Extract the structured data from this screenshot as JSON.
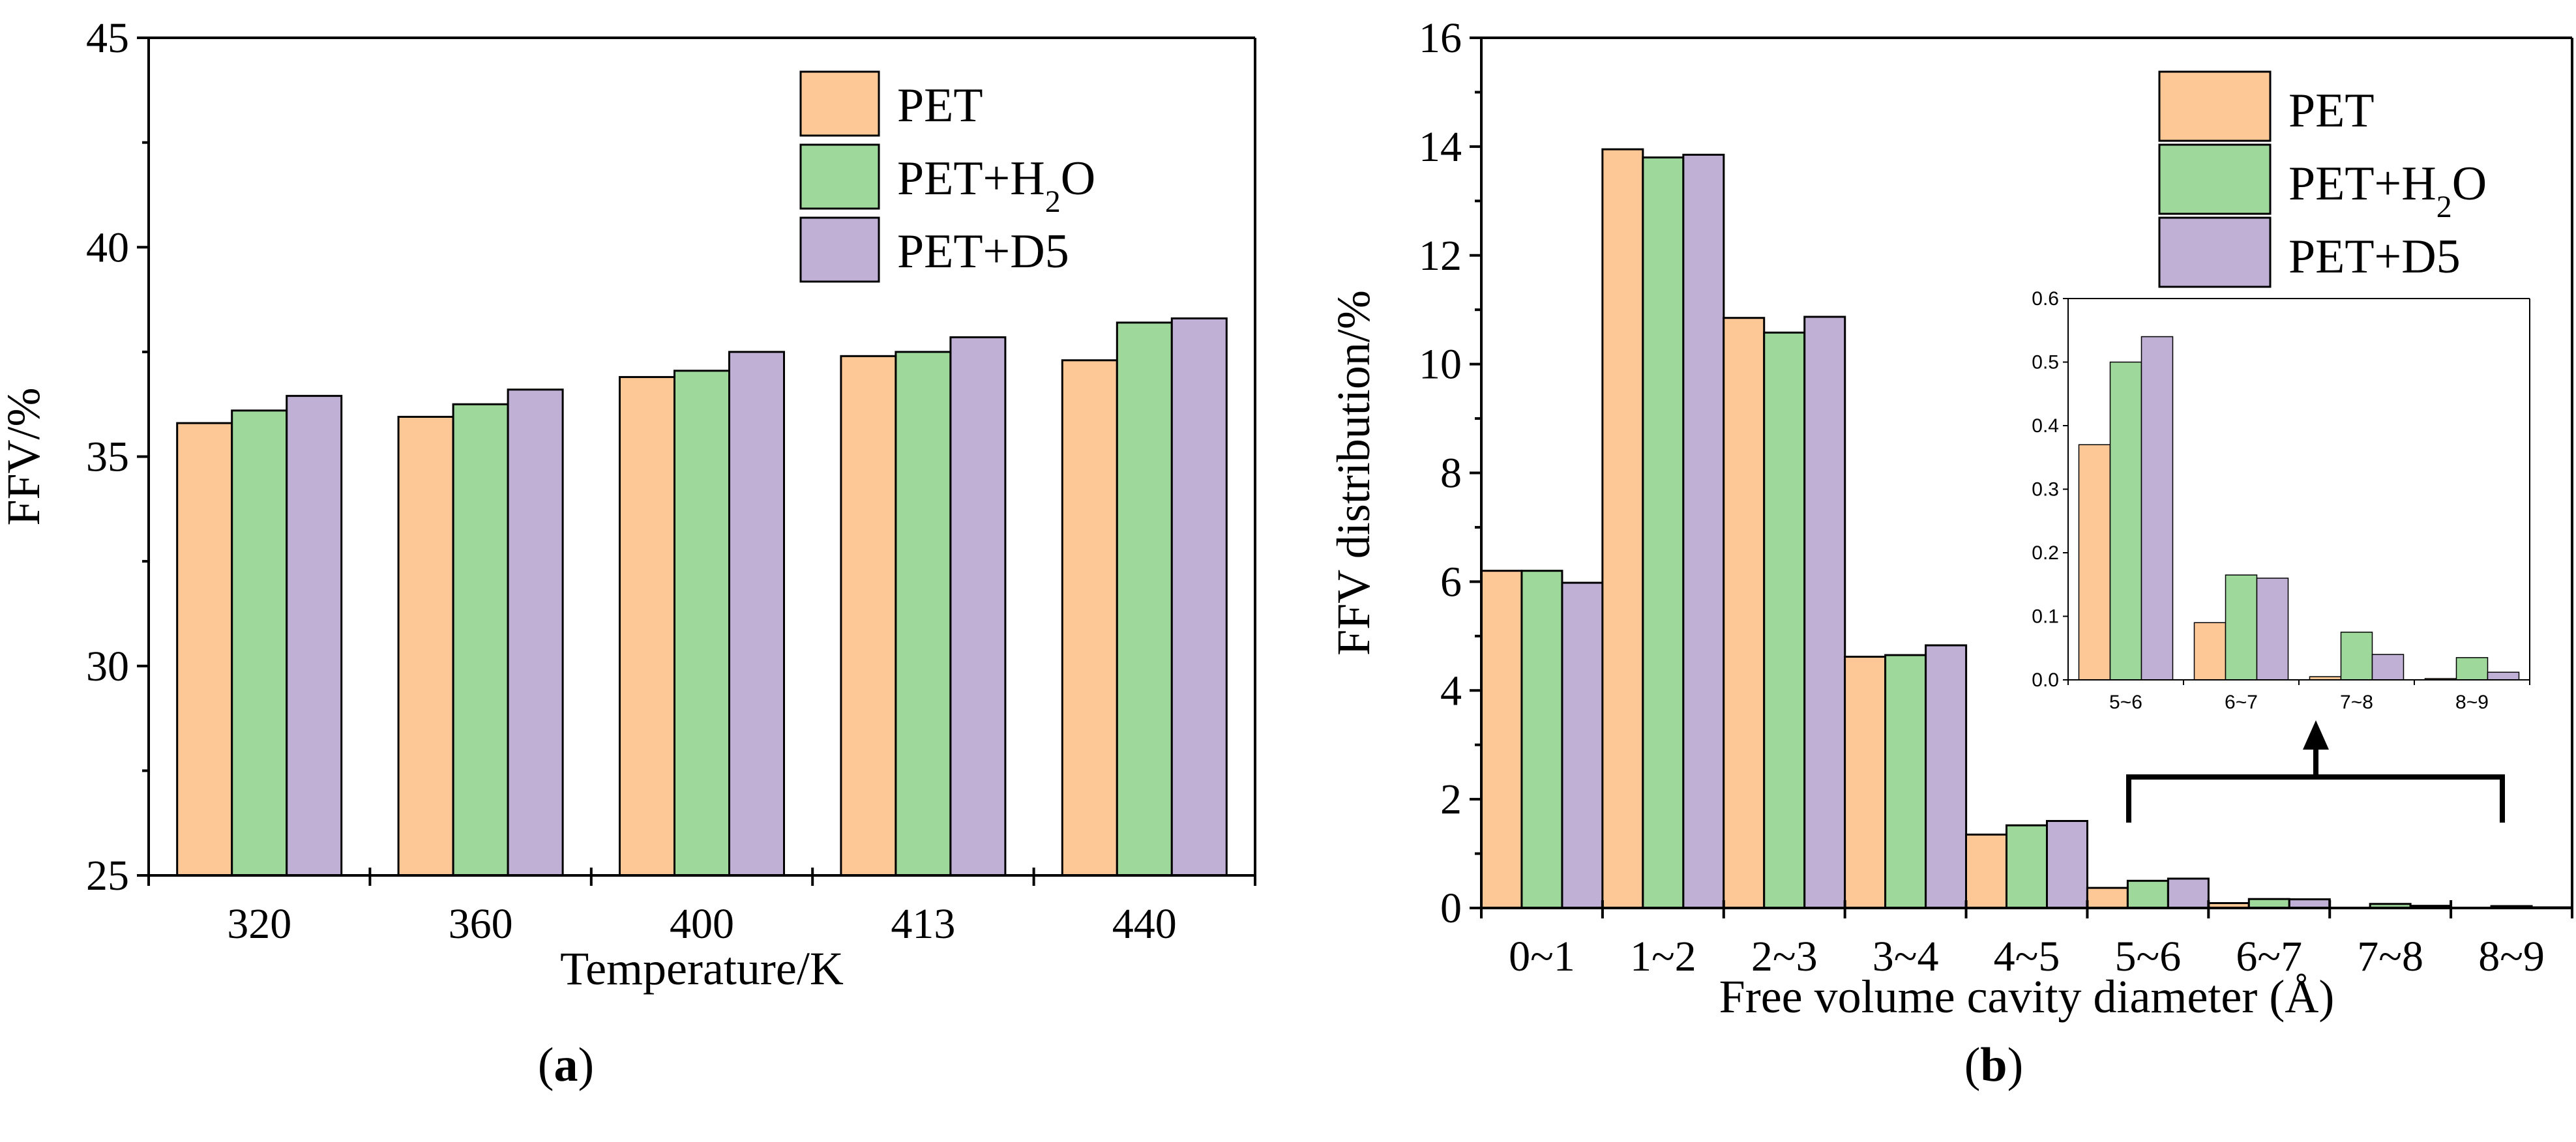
{
  "colors": {
    "PET": "#fdc896",
    "PET+H2O": "#9ed89b",
    "PET+D5": "#c0b0d6",
    "axis": "#000000"
  },
  "legend": {
    "entries": [
      {
        "key": "PET",
        "base": "PET",
        "sub": "",
        "tail": ""
      },
      {
        "key": "PET+H2O",
        "base": "PET+H",
        "sub": "2",
        "tail": "O"
      },
      {
        "key": "PET+D5",
        "base": "PET+D5",
        "sub": "",
        "tail": ""
      }
    ]
  },
  "chart_data": [
    {
      "id": "a",
      "panel_label": "a",
      "type": "bar",
      "title": "",
      "xlabel": "Temperature/K",
      "ylabel": "FFV/%",
      "ylim": [
        25,
        45
      ],
      "yticks": [
        "25",
        "30",
        "35",
        "40",
        "45"
      ],
      "categories": [
        "320",
        "360",
        "400",
        "413",
        "440"
      ],
      "series": [
        {
          "name": "PET",
          "values": [
            35.8,
            35.95,
            36.9,
            37.4,
            37.3
          ]
        },
        {
          "name": "PET+H2O",
          "values": [
            36.1,
            36.25,
            37.05,
            37.5,
            38.2
          ]
        },
        {
          "name": "PET+D5",
          "values": [
            36.45,
            36.6,
            37.5,
            37.85,
            38.3
          ]
        }
      ],
      "legend_position": "top-right"
    },
    {
      "id": "b",
      "panel_label": "b",
      "type": "bar",
      "title": "",
      "xlabel": "Free volume cavity diameter (Å)",
      "ylabel": "FFV distribution/%",
      "ylim": [
        0,
        16
      ],
      "yticks": [
        "0",
        "2",
        "4",
        "6",
        "8",
        "10",
        "12",
        "14",
        "16"
      ],
      "categories": [
        "0~1",
        "1~2",
        "2~3",
        "3~4",
        "4~5",
        "5~6",
        "6~7",
        "7~8",
        "8~9"
      ],
      "series": [
        {
          "name": "PET",
          "values": [
            6.2,
            13.95,
            10.85,
            4.62,
            1.35,
            0.37,
            0.09,
            0.005,
            0.002
          ]
        },
        {
          "name": "PET+H2O",
          "values": [
            6.2,
            13.8,
            10.58,
            4.65,
            1.52,
            0.5,
            0.165,
            0.075,
            0.035
          ]
        },
        {
          "name": "PET+D5",
          "values": [
            5.98,
            13.85,
            10.87,
            4.83,
            1.6,
            0.54,
            0.16,
            0.04,
            0.012
          ]
        }
      ],
      "legend_position": "top-right"
    },
    {
      "id": "b-inset",
      "type": "bar",
      "title": "",
      "xlabel": "",
      "ylabel": "",
      "ylim": [
        0,
        0.6
      ],
      "yticks": [
        "0.0",
        "0.1",
        "0.2",
        "0.3",
        "0.4",
        "0.5",
        "0.6"
      ],
      "categories": [
        "5~6",
        "6~7",
        "7~8",
        "8~9"
      ],
      "series": [
        {
          "name": "PET",
          "values": [
            0.37,
            0.09,
            0.005,
            0.002
          ]
        },
        {
          "name": "PET+H2O",
          "values": [
            0.5,
            0.165,
            0.075,
            0.035
          ]
        },
        {
          "name": "PET+D5",
          "values": [
            0.54,
            0.16,
            0.04,
            0.012
          ]
        }
      ]
    }
  ]
}
